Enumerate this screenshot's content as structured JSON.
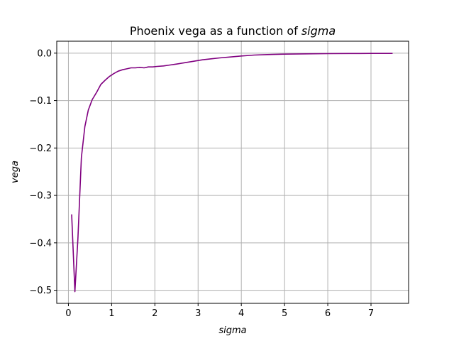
{
  "chart_data": {
    "type": "line",
    "title": "Phoenix vega as a function of ",
    "title_italic": "sigma",
    "xlabel": "sigma",
    "ylabel": "vega",
    "xlim": [
      -0.27,
      7.87
    ],
    "ylim": [
      -0.5276,
      0.0252
    ],
    "xticks": [
      0,
      1,
      2,
      3,
      4,
      5,
      6,
      7
    ],
    "xtick_labels": [
      "0",
      "1",
      "2",
      "3",
      "4",
      "5",
      "6",
      "7"
    ],
    "yticks": [
      0.0,
      -0.1,
      -0.2,
      -0.3,
      -0.4,
      -0.5
    ],
    "ytick_labels": [
      "0.0",
      "−0.1",
      "−0.2",
      "−0.3",
      "−0.4",
      "−0.5"
    ],
    "grid": true,
    "series": [
      {
        "color": "#800080",
        "x": [
          0.075,
          0.15,
          0.22,
          0.3,
          0.38,
          0.46,
          0.55,
          0.65,
          0.75,
          0.85,
          0.95,
          1.05,
          1.15,
          1.25,
          1.35,
          1.45,
          1.55,
          1.65,
          1.75,
          1.85,
          1.95,
          2.05,
          2.2,
          2.35,
          2.5,
          2.7,
          2.9,
          3.1,
          3.3,
          3.5,
          3.75,
          4.0,
          4.3,
          4.6,
          5.0,
          5.5,
          6.0,
          6.5,
          7.0,
          7.5
        ],
        "y": [
          -0.34,
          -0.503,
          -0.39,
          -0.22,
          -0.155,
          -0.12,
          -0.098,
          -0.083,
          -0.066,
          -0.057,
          -0.049,
          -0.043,
          -0.038,
          -0.035,
          -0.033,
          -0.031,
          -0.031,
          -0.03,
          -0.031,
          -0.029,
          -0.029,
          -0.028,
          -0.027,
          -0.025,
          -0.023,
          -0.02,
          -0.017,
          -0.014,
          -0.012,
          -0.01,
          -0.008,
          -0.006,
          -0.004,
          -0.003,
          -0.002,
          -0.0015,
          -0.001,
          -0.0008,
          -0.0006,
          -0.0005
        ]
      }
    ]
  }
}
